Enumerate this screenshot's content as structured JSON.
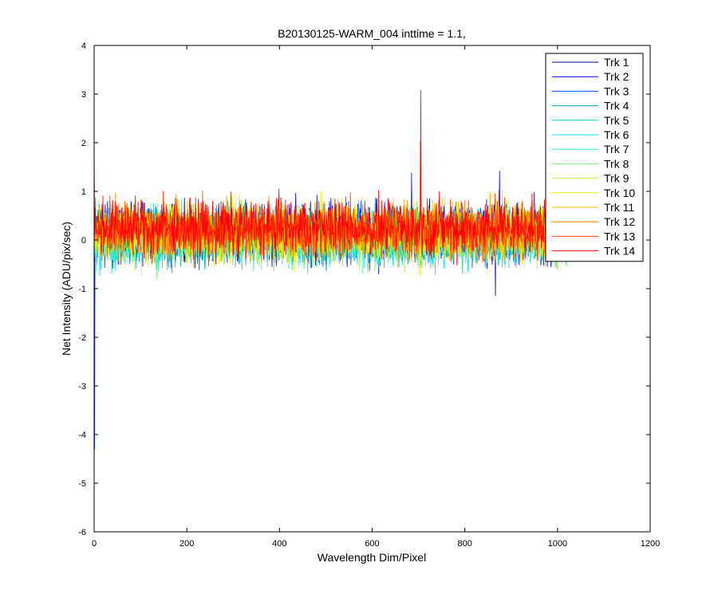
{
  "chart_data": {
    "type": "line",
    "title": "B20130125-WARM_004 inttime = 1.1,",
    "xlabel": "Wavelength Dim/Pixel",
    "ylabel": "Net Intensity (ADU/pix/sec)",
    "xlim": [
      0,
      1200
    ],
    "ylim": [
      -6,
      4
    ],
    "xticks": [
      0,
      200,
      400,
      600,
      800,
      1000,
      1200
    ],
    "yticks": [
      -6,
      -5,
      -4,
      -3,
      -2,
      -1,
      0,
      1,
      2,
      3,
      4
    ],
    "grid": false,
    "legend_position": "top-right",
    "n_points": 1024,
    "series": [
      {
        "name": "Trk 1",
        "color": "#00008F",
        "offset": 0.15
      },
      {
        "name": "Trk 2",
        "color": "#0000FF",
        "offset": 0.15
      },
      {
        "name": "Trk 3",
        "color": "#0050FF",
        "offset": 0.12
      },
      {
        "name": "Trk 4",
        "color": "#00A0C0",
        "offset": 0.1
      },
      {
        "name": "Trk 5",
        "color": "#00D0D0",
        "offset": 0.05
      },
      {
        "name": "Trk 6",
        "color": "#00E8E8",
        "offset": 0.05
      },
      {
        "name": "Trk 7",
        "color": "#40F0C0",
        "offset": 0.08
      },
      {
        "name": "Trk 8",
        "color": "#80F080",
        "offset": 0.1
      },
      {
        "name": "Trk 9",
        "color": "#C0F040",
        "offset": 0.12
      },
      {
        "name": "Trk 10",
        "color": "#F0F000",
        "offset": 0.15
      },
      {
        "name": "Trk 11",
        "color": "#FFC000",
        "offset": 0.18
      },
      {
        "name": "Trk 12",
        "color": "#FF8000",
        "offset": 0.2
      },
      {
        "name": "Trk 13",
        "color": "#FF4000",
        "offset": 0.22
      },
      {
        "name": "Trk 14",
        "color": "#FF0000",
        "offset": 0.25
      }
    ],
    "annotations": [
      {
        "series": "Trk 14",
        "x": 705,
        "y": 3.08
      },
      {
        "series": "Trk 13",
        "x": 704,
        "y": 2.03
      },
      {
        "series": "Trk 14",
        "x": 0,
        "y": 2.05
      },
      {
        "series": "Trk 3",
        "x": 1,
        "y": -4.3
      },
      {
        "series": "Trk 1",
        "x": 1,
        "y": -1.55
      },
      {
        "series": "Trk 1",
        "x": 866,
        "y": -1.15
      },
      {
        "series": "Trk 2",
        "x": 875,
        "y": 1.42
      },
      {
        "series": "Trk 2",
        "x": 685,
        "y": 1.38
      }
    ]
  }
}
